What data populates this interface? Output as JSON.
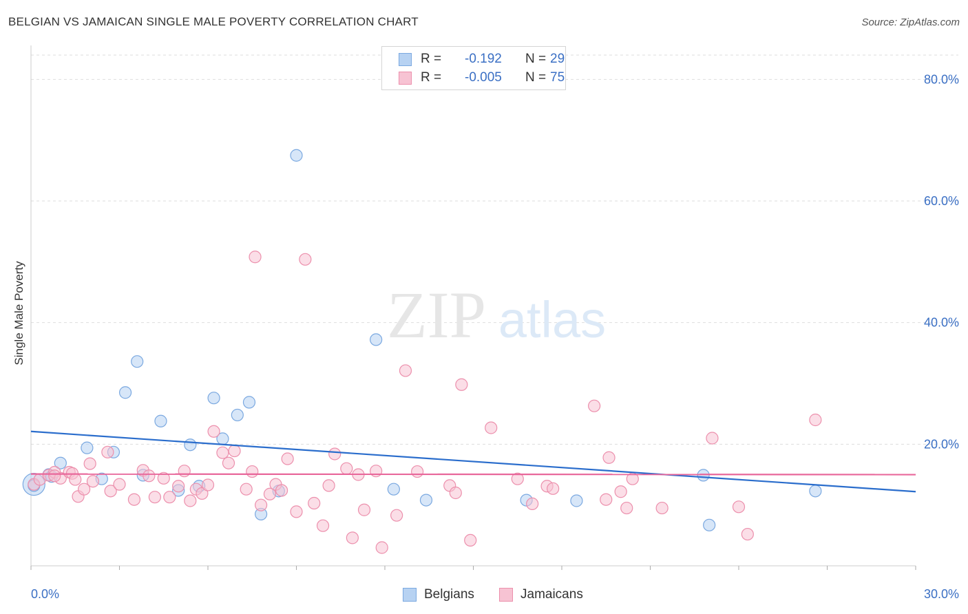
{
  "title": "BELGIAN VS JAMAICAN SINGLE MALE POVERTY CORRELATION CHART",
  "source": "Source: ZipAtlas.com",
  "watermark": {
    "zip": "ZIP",
    "atlas": "atlas"
  },
  "colors": {
    "belgian_fill": "#b7d2f2",
    "belgian_stroke": "#7aa8e0",
    "belgian_line": "#2a6dcc",
    "jamaican_fill": "#f7c3d3",
    "jamaican_stroke": "#ec8fac",
    "jamaican_line": "#e8669a",
    "axis_text": "#3a6fc4",
    "grid": "#dddddd"
  },
  "stats": [
    {
      "series": "Belgians",
      "r_label": "R =",
      "r_value": "-0.192",
      "n_label": "N =",
      "n_value": "29"
    },
    {
      "series": "Jamaicans",
      "r_label": "R =",
      "r_value": "-0.005",
      "n_label": "N =",
      "n_value": "75"
    }
  ],
  "legend": [
    {
      "label": "Belgians"
    },
    {
      "label": "Jamaicans"
    }
  ],
  "chart_data": {
    "type": "scatter",
    "title": "BELGIAN VS JAMAICAN SINGLE MALE POVERTY CORRELATION CHART",
    "xlabel": "",
    "ylabel": "Single Male Poverty",
    "xlim": [
      0,
      30
    ],
    "ylim": [
      0,
      84
    ],
    "grid": true,
    "legend_position": "bottom",
    "x_tick_labels": [
      "0.0%",
      "30.0%"
    ],
    "y_ticks": [
      20,
      40,
      60,
      80
    ],
    "y_tick_labels": [
      "20.0%",
      "40.0%",
      "60.0%",
      "80.0%"
    ],
    "series": [
      {
        "name": "Belgians",
        "trend": {
          "x": [
            0,
            30
          ],
          "y": [
            22.1,
            12.2
          ]
        },
        "points": [
          [
            0.1,
            13.2
          ],
          [
            0.6,
            15.0
          ],
          [
            1.0,
            16.9
          ],
          [
            1.9,
            19.4
          ],
          [
            2.4,
            14.3
          ],
          [
            2.8,
            18.7
          ],
          [
            3.2,
            28.5
          ],
          [
            3.6,
            33.6
          ],
          [
            3.8,
            14.9
          ],
          [
            4.4,
            23.8
          ],
          [
            5.0,
            12.4
          ],
          [
            5.4,
            19.9
          ],
          [
            5.7,
            13.1
          ],
          [
            6.2,
            27.6
          ],
          [
            6.5,
            20.9
          ],
          [
            7.0,
            24.8
          ],
          [
            7.4,
            26.9
          ],
          [
            7.8,
            8.5
          ],
          [
            8.4,
            12.3
          ],
          [
            9.0,
            67.5
          ],
          [
            11.7,
            37.2
          ],
          [
            12.3,
            12.6
          ],
          [
            13.4,
            10.8
          ],
          [
            16.8,
            10.8
          ],
          [
            18.5,
            10.7
          ],
          [
            22.8,
            14.9
          ],
          [
            23.0,
            6.7
          ],
          [
            26.6,
            12.3
          ],
          [
            0.7,
            14.7
          ]
        ]
      },
      {
        "name": "Jamaicans",
        "trend": {
          "x": [
            0,
            30
          ],
          "y": [
            15.1,
            15.0
          ]
        },
        "points": [
          [
            0.1,
            13.4
          ],
          [
            0.3,
            14.2
          ],
          [
            0.6,
            14.9
          ],
          [
            0.8,
            15.4
          ],
          [
            1.0,
            14.4
          ],
          [
            1.3,
            15.4
          ],
          [
            1.4,
            15.2
          ],
          [
            1.6,
            11.4
          ],
          [
            1.8,
            12.6
          ],
          [
            2.0,
            16.8
          ],
          [
            2.1,
            13.9
          ],
          [
            2.6,
            18.7
          ],
          [
            2.7,
            12.3
          ],
          [
            3.0,
            13.4
          ],
          [
            3.5,
            10.9
          ],
          [
            3.8,
            15.7
          ],
          [
            4.0,
            14.8
          ],
          [
            4.2,
            11.3
          ],
          [
            4.5,
            14.4
          ],
          [
            4.7,
            11.3
          ],
          [
            5.0,
            13.1
          ],
          [
            5.2,
            15.6
          ],
          [
            5.4,
            10.7
          ],
          [
            5.6,
            12.6
          ],
          [
            5.8,
            11.9
          ],
          [
            6.0,
            13.3
          ],
          [
            6.2,
            22.1
          ],
          [
            6.5,
            18.6
          ],
          [
            6.7,
            16.9
          ],
          [
            6.9,
            18.9
          ],
          [
            7.3,
            12.6
          ],
          [
            7.5,
            15.5
          ],
          [
            7.6,
            50.8
          ],
          [
            7.8,
            10.0
          ],
          [
            8.1,
            11.8
          ],
          [
            8.3,
            13.4
          ],
          [
            8.5,
            12.4
          ],
          [
            8.7,
            17.6
          ],
          [
            9.0,
            8.9
          ],
          [
            9.3,
            50.4
          ],
          [
            9.6,
            10.3
          ],
          [
            9.9,
            6.6
          ],
          [
            10.1,
            13.2
          ],
          [
            10.3,
            18.4
          ],
          [
            10.7,
            16.0
          ],
          [
            10.9,
            4.6
          ],
          [
            11.1,
            15.0
          ],
          [
            11.3,
            9.2
          ],
          [
            11.7,
            15.6
          ],
          [
            11.9,
            3.0
          ],
          [
            12.4,
            8.3
          ],
          [
            12.7,
            32.1
          ],
          [
            13.1,
            15.5
          ],
          [
            14.2,
            13.2
          ],
          [
            14.4,
            12.0
          ],
          [
            14.6,
            29.8
          ],
          [
            14.9,
            4.2
          ],
          [
            15.6,
            22.7
          ],
          [
            16.5,
            14.3
          ],
          [
            17.0,
            10.2
          ],
          [
            17.5,
            13.1
          ],
          [
            17.7,
            12.7
          ],
          [
            19.1,
            26.3
          ],
          [
            19.5,
            10.9
          ],
          [
            19.6,
            17.8
          ],
          [
            20.0,
            12.2
          ],
          [
            20.2,
            9.5
          ],
          [
            20.4,
            14.3
          ],
          [
            21.4,
            9.5
          ],
          [
            23.1,
            21.0
          ],
          [
            24.0,
            9.7
          ],
          [
            24.3,
            5.2
          ],
          [
            26.6,
            24.0
          ],
          [
            1.5,
            14.2
          ],
          [
            0.8,
            14.8
          ]
        ]
      }
    ]
  }
}
